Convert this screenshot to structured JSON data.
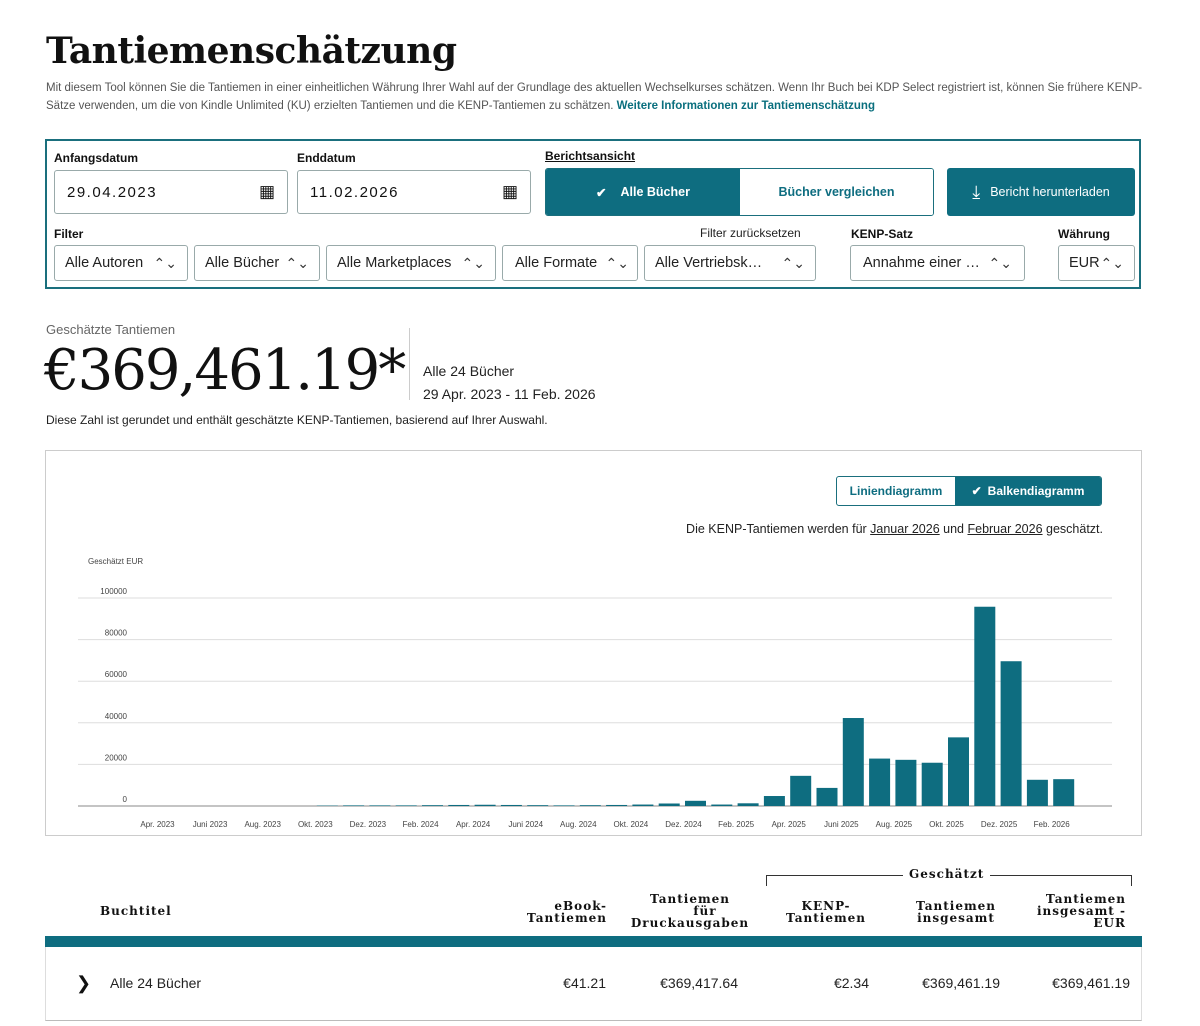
{
  "header": {
    "title": "Tantiemenschätzung",
    "description": "Mit diesem Tool können Sie die Tantiemen in einer einheitlichen Währung Ihrer Wahl auf der Grundlage des aktuellen Wechselkurses schätzen. Wenn Ihr Buch bei KDP Select registriert ist, können Sie frühere KENP-Sätze verwenden, um die von Kindle Unlimited (KU) erzielten Tantiemen und die KENP-Tantiemen zu schätzen.",
    "more_link": "Weitere Informationen zur Tantiemenschätzung"
  },
  "filters": {
    "start_label": "Anfangsdatum",
    "start_value": "29.04.2023",
    "end_label": "Enddatum",
    "end_value": "11.02.2026",
    "report_view_label": "Berichtsansicht",
    "view_all": "Alle Bücher",
    "view_compare": "Bücher vergleichen",
    "download": "Bericht herunterladen",
    "filter_label": "Filter",
    "reset": "Filter zurücksetzen",
    "kenp_label": "KENP-Satz",
    "currency_label": "Währung",
    "authors": "Alle Autoren",
    "books": "Alle Bücher",
    "marketplaces": "Alle Marketplaces",
    "formats": "Alle Formate",
    "channels": "Alle Vertriebsk…",
    "kenp_value": "Annahme einer …",
    "currency_value": "EUR"
  },
  "summary": {
    "label": "Geschätzte Tantiemen",
    "amount": "€369,461.19*",
    "books": "Alle 24 Bücher",
    "range": "29 Apr. 2023 - 11 Feb. 2026",
    "note": "Diese Zahl ist gerundet und enthält geschätzte KENP-Tantiemen, basierend auf Ihrer Auswahl."
  },
  "chart_controls": {
    "line": "Liniendiagramm",
    "bar": "Balkendiagramm",
    "kenp_pre": "Die KENP-Tantiemen werden für ",
    "kenp_m1": "Januar 2026",
    "kenp_mid": " und ",
    "kenp_m2": "Februar 2026",
    "kenp_post": " geschätzt."
  },
  "chart_data": {
    "type": "bar",
    "ylabel": "Geschätzt EUR",
    "ylim": [
      0,
      100000
    ],
    "yticks": [
      0,
      20000,
      40000,
      60000,
      80000,
      100000
    ],
    "color": "#0e6d80",
    "tick_labels": [
      "Apr. 2023",
      "Juni 2023",
      "Aug. 2023",
      "Okt. 2023",
      "Dez. 2023",
      "Feb. 2024",
      "Apr. 2024",
      "Juni 2024",
      "Aug. 2024",
      "Okt. 2024",
      "Dez. 2024",
      "Feb. 2025",
      "Apr. 2025",
      "Juni 2025",
      "Aug. 2025",
      "Okt. 2025",
      "Dez. 2025",
      "Feb. 2026"
    ],
    "categories": [
      "Apr. 2023",
      "Mai 2023",
      "Juni 2023",
      "Juli 2023",
      "Aug. 2023",
      "Sep. 2023",
      "Okt. 2023",
      "Nov. 2023",
      "Dez. 2023",
      "Jan. 2024",
      "Feb. 2024",
      "März 2024",
      "Apr. 2024",
      "Mai 2024",
      "Juni 2024",
      "Juli 2024",
      "Aug. 2024",
      "Sep. 2024",
      "Okt. 2024",
      "Nov. 2024",
      "Dez. 2024",
      "Jan. 2025",
      "Feb. 2025",
      "März 2025",
      "Apr. 2025",
      "Mai 2025",
      "Juni 2025",
      "Juli 2025",
      "Aug. 2025",
      "Sep. 2025",
      "Okt. 2025",
      "Nov. 2025",
      "Dez. 2025",
      "Jan. 2026",
      "Feb. 2026"
    ],
    "values": [
      0,
      0,
      0,
      0,
      0,
      0,
      200,
      300,
      300,
      300,
      400,
      500,
      600,
      500,
      400,
      300,
      400,
      500,
      700,
      1200,
      2500,
      700,
      1300,
      4800,
      14500,
      8700,
      42300,
      22800,
      22200,
      20800,
      33000,
      95800,
      69600,
      12600,
      12900
    ]
  },
  "table": {
    "group_header": "Geschätzt",
    "col_title": "Buchtitel",
    "col_ebook_1": "eBook-",
    "col_ebook_2": "Tantiemen",
    "col_print_1": "Tantiemen",
    "col_print_2": "für",
    "col_print_3": "Druckausgaben",
    "col_kenp_1": "KENP-",
    "col_kenp_2": "Tantiemen",
    "col_total_1": "Tantiemen",
    "col_total_2": "insgesamt",
    "col_eur_1": "Tantiemen",
    "col_eur_2": "insgesamt -",
    "col_eur_3": "EUR",
    "row": {
      "title": "Alle 24 Bücher",
      "ebook": "€41.21",
      "print": "€369,417.64",
      "kenp": "€2.34",
      "total": "€369,461.19",
      "total_eur": "€369,461.19"
    }
  }
}
